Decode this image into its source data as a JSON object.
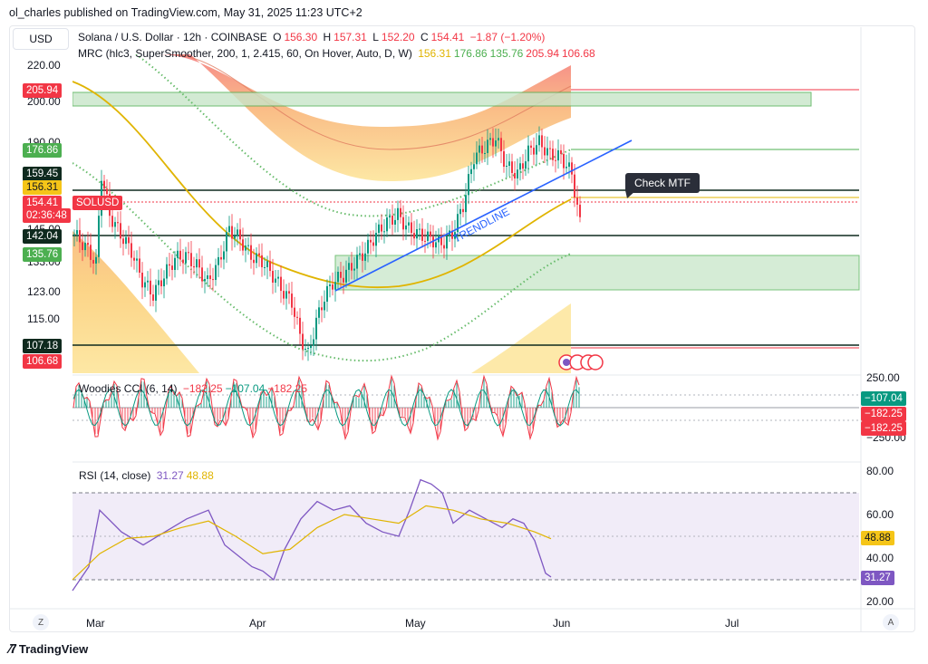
{
  "header": {
    "text": "ol_charles published on TradingView.com, May 31, 2025 11:23 UTC+2"
  },
  "currency": "USD",
  "legend": {
    "symbol": "Solana / U.S. Dollar · 12h · COINBASE",
    "o_label": "O",
    "o": "156.30",
    "h_label": "H",
    "h": "157.31",
    "l_label": "L",
    "l": "152.20",
    "c_label": "C",
    "c": "154.41",
    "change": "−1.87 (−1.20%)",
    "mrc_label": "MRC (hlc3, SuperSmoother, 200, 1, 2.415, 60, On Hover, Auto, D, W)",
    "mrc_values": [
      "156.31",
      "176.86",
      "135.76",
      "205.94",
      "106.68"
    ],
    "mrc_colors": [
      "#e0b400",
      "#4caf50",
      "#4caf50",
      "#f23645",
      "#f23645"
    ],
    "cci_label": "Woodies CCI (6, 14)",
    "cci_values": [
      "−182.25",
      "−107.04",
      "−182.25"
    ],
    "cci_colors": [
      "#f23645",
      "#089981",
      "#f23645"
    ],
    "rsi_label": "RSI (14, close)",
    "rsi_values": [
      "31.27",
      "48.88"
    ],
    "rsi_colors": [
      "#7e57c2",
      "#e0b400"
    ]
  },
  "price_axis": {
    "ticks": [
      "220.00",
      "200.00",
      "190.00",
      "145.00",
      "133.00",
      "123.00",
      "115.00"
    ],
    "chips": [
      {
        "text": "205.94",
        "bg": "#f23645",
        "fg": "#ffffff"
      },
      {
        "text": "176.86",
        "bg": "#4caf50",
        "fg": "#ffffff"
      },
      {
        "text": "159.45",
        "bg": "#0f2a1e",
        "fg": "#ffffff"
      },
      {
        "text": "156.31",
        "bg": "#f5c518",
        "fg": "#131722"
      },
      {
        "text": "154.41",
        "bg": "#f23645",
        "fg": "#ffffff"
      },
      {
        "text": "02:36:48",
        "bg": "#f23645",
        "fg": "#ffffff"
      },
      {
        "text": "142.04",
        "bg": "#0f2a1e",
        "fg": "#ffffff"
      },
      {
        "text": "135.76",
        "bg": "#4caf50",
        "fg": "#ffffff"
      },
      {
        "text": "107.18",
        "bg": "#0f2a1e",
        "fg": "#ffffff"
      },
      {
        "text": "106.68",
        "bg": "#f23645",
        "fg": "#ffffff"
      }
    ],
    "symbol_tag": "SOLUSD"
  },
  "cci_axis": {
    "ticks": [
      "250.00",
      "−250.00"
    ],
    "chips": [
      {
        "text": "−107.04",
        "bg": "#089981"
      },
      {
        "text": "−182.25",
        "bg": "#f23645"
      },
      {
        "text": "−182.25",
        "bg": "#f23645"
      }
    ]
  },
  "rsi_axis": {
    "ticks": [
      "80.00",
      "60.00",
      "40.00",
      "20.00"
    ],
    "chips": [
      {
        "text": "48.88",
        "bg": "#f5c518",
        "fg": "#131722"
      },
      {
        "text": "31.27",
        "bg": "#7e57c2",
        "fg": "#ffffff"
      }
    ]
  },
  "time_axis": [
    "Mar",
    "Apr",
    "May",
    "Jun",
    "Jul"
  ],
  "annotations": {
    "trendline": "TRENDLINE",
    "callout": "Check MTF"
  },
  "footer": {
    "brand": "TradingView"
  },
  "corner_buttons": {
    "left": "Z",
    "right": "A"
  },
  "chart_data": {
    "type": "candlestick",
    "instrument": "Solana / U.S. Dollar",
    "timeframe": "12h",
    "ohlc_last": {
      "open": 156.3,
      "high": 157.31,
      "low": 152.2,
      "close": 154.41
    },
    "price_range": [
      95,
      225
    ],
    "close_path": [
      [
        0,
        150
      ],
      [
        4,
        145
      ],
      [
        8,
        138
      ],
      [
        10,
        175
      ],
      [
        13,
        158
      ],
      [
        17,
        150
      ],
      [
        21,
        143
      ],
      [
        25,
        131
      ],
      [
        29,
        125
      ],
      [
        33,
        133
      ],
      [
        37,
        140
      ],
      [
        41,
        141
      ],
      [
        45,
        137
      ],
      [
        49,
        130
      ],
      [
        53,
        138
      ],
      [
        57,
        152
      ],
      [
        61,
        148
      ],
      [
        65,
        141
      ],
      [
        69,
        139
      ],
      [
        73,
        133
      ],
      [
        77,
        126
      ],
      [
        80,
        122
      ],
      [
        83,
        108
      ],
      [
        86,
        100
      ],
      [
        89,
        114
      ],
      [
        92,
        124
      ],
      [
        95,
        130
      ],
      [
        99,
        133
      ],
      [
        103,
        138
      ],
      [
        107,
        143
      ],
      [
        111,
        150
      ],
      [
        115,
        155
      ],
      [
        119,
        158
      ],
      [
        123,
        152
      ],
      [
        127,
        150
      ],
      [
        131,
        148
      ],
      [
        135,
        146
      ],
      [
        139,
        150
      ],
      [
        143,
        162
      ],
      [
        147,
        182
      ],
      [
        151,
        186
      ],
      [
        155,
        190
      ],
      [
        159,
        178
      ],
      [
        163,
        175
      ],
      [
        167,
        184
      ],
      [
        171,
        188
      ],
      [
        175,
        183
      ],
      [
        179,
        182
      ],
      [
        183,
        175
      ],
      [
        186,
        154.41
      ]
    ],
    "horizontal_levels": [
      205.94,
      176.86,
      159.45,
      156.31,
      142.04,
      135.76,
      107.18,
      106.68
    ],
    "trendline": [
      [
        63,
        122
      ],
      [
        200,
        182
      ]
    ],
    "cci": {
      "range": [
        -250,
        250
      ],
      "last": [
        -182.25,
        -107.04,
        -182.25
      ]
    },
    "rsi": {
      "range": [
        20,
        80
      ],
      "bands": [
        30,
        70
      ],
      "rsi_path": [
        [
          0,
          25
        ],
        [
          6,
          36
        ],
        [
          10,
          62
        ],
        [
          18,
          52
        ],
        [
          26,
          46
        ],
        [
          34,
          52
        ],
        [
          42,
          58
        ],
        [
          50,
          62
        ],
        [
          56,
          46
        ],
        [
          62,
          40
        ],
        [
          66,
          36
        ],
        [
          70,
          34
        ],
        [
          74,
          30
        ],
        [
          78,
          44
        ],
        [
          84,
          58
        ],
        [
          90,
          66
        ],
        [
          96,
          62
        ],
        [
          102,
          64
        ],
        [
          108,
          56
        ],
        [
          114,
          52
        ],
        [
          120,
          50
        ],
        [
          124,
          62
        ],
        [
          128,
          76
        ],
        [
          132,
          74
        ],
        [
          136,
          70
        ],
        [
          140,
          56
        ],
        [
          146,
          62
        ],
        [
          152,
          58
        ],
        [
          158,
          54
        ],
        [
          162,
          58
        ],
        [
          166,
          56
        ],
        [
          170,
          48
        ],
        [
          174,
          33
        ],
        [
          176,
          31.27
        ]
      ],
      "ma_path": [
        [
          0,
          30
        ],
        [
          10,
          42
        ],
        [
          20,
          49
        ],
        [
          30,
          50
        ],
        [
          40,
          54
        ],
        [
          50,
          57
        ],
        [
          60,
          50
        ],
        [
          70,
          42
        ],
        [
          80,
          44
        ],
        [
          90,
          54
        ],
        [
          100,
          60
        ],
        [
          110,
          58
        ],
        [
          120,
          56
        ],
        [
          130,
          64
        ],
        [
          140,
          62
        ],
        [
          150,
          58
        ],
        [
          160,
          56
        ],
        [
          170,
          52
        ],
        [
          176,
          48.88
        ]
      ],
      "last": {
        "rsi": 31.27,
        "ma": 48.88
      }
    }
  }
}
